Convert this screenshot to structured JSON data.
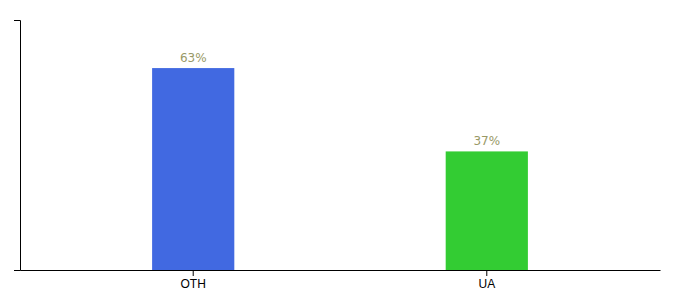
{
  "chart_data": {
    "type": "bar",
    "categories": [
      "OTH",
      "UA"
    ],
    "values": [
      63,
      37
    ],
    "colors": [
      "#4169e1",
      "#33cc33"
    ],
    "value_labels": [
      "63%",
      "37%"
    ],
    "data_labels": true,
    "ylim": [
      0,
      78
    ],
    "yticks": [],
    "tick_labels": "x",
    "grid": false
  }
}
